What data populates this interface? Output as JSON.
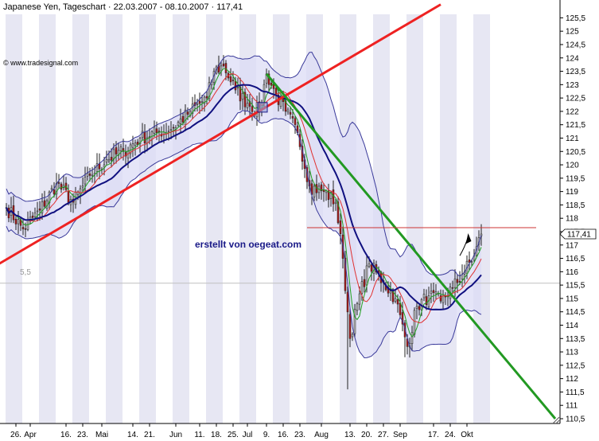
{
  "header": {
    "title": "Japanese Yen, Tageschart · 22.03.2007 - 08.10.2007 · 117,41",
    "copyright": "© www.tradesignal.com"
  },
  "annotations": {
    "watermark": "erstellt von oegeat.com",
    "level_marker": "5,5",
    "last_price": "117,41"
  },
  "chart_data": {
    "type": "candlestick",
    "title": "Japanese Yen, Tageschart · 22.03.2007 - 08.10.2007 · 117,41",
    "ylim": [
      110.5,
      125.75
    ],
    "y_ticks": [
      "125,5",
      "125",
      "124,5",
      "124",
      "123,5",
      "123",
      "122,5",
      "122",
      "121,5",
      "121",
      "120,5",
      "120",
      "119,5",
      "119",
      "118,5",
      "118",
      "117,5",
      "117",
      "116,5",
      "116",
      "115,5",
      "115",
      "114,5",
      "114",
      "113,5",
      "113",
      "112,5",
      "112",
      "111,5",
      "111",
      "110,5"
    ],
    "x_ticks": [
      {
        "label": "26.",
        "day": 4
      },
      {
        "label": "Apr",
        "day": 10
      },
      {
        "label": "16.",
        "day": 25
      },
      {
        "label": "23.",
        "day": 32
      },
      {
        "label": "Mai",
        "day": 40
      },
      {
        "label": "14.",
        "day": 53
      },
      {
        "label": "21.",
        "day": 60
      },
      {
        "label": "Jun",
        "day": 71
      },
      {
        "label": "11.",
        "day": 81
      },
      {
        "label": "18.",
        "day": 88
      },
      {
        "label": "25.",
        "day": 95
      },
      {
        "label": "Jul",
        "day": 101
      },
      {
        "label": "9.",
        "day": 109
      },
      {
        "label": "16.",
        "day": 116
      },
      {
        "label": "23.",
        "day": 123
      },
      {
        "label": "Aug",
        "day": 132
      },
      {
        "label": "13.",
        "day": 144
      },
      {
        "label": "20.",
        "day": 151
      },
      {
        "label": "27.",
        "day": 158
      },
      {
        "label": "Sep",
        "day": 165
      },
      {
        "label": "17.",
        "day": 179
      },
      {
        "label": "24.",
        "day": 186
      },
      {
        "label": "Okt",
        "day": 193
      }
    ],
    "close_anchors": [
      {
        "day": 0,
        "value": 118.4
      },
      {
        "day": 7,
        "value": 117.6
      },
      {
        "day": 14,
        "value": 118.3
      },
      {
        "day": 21,
        "value": 119.3
      },
      {
        "day": 28,
        "value": 118.6
      },
      {
        "day": 35,
        "value": 119.6
      },
      {
        "day": 42,
        "value": 120.2
      },
      {
        "day": 49,
        "value": 120.5
      },
      {
        "day": 56,
        "value": 121.0
      },
      {
        "day": 63,
        "value": 121.2
      },
      {
        "day": 70,
        "value": 121.4
      },
      {
        "day": 77,
        "value": 122.0
      },
      {
        "day": 84,
        "value": 122.5
      },
      {
        "day": 87,
        "value": 123.5
      },
      {
        "day": 91,
        "value": 123.7
      },
      {
        "day": 96,
        "value": 122.8
      },
      {
        "day": 101,
        "value": 122.3
      },
      {
        "day": 106,
        "value": 122.0
      },
      {
        "day": 109,
        "value": 123.4
      },
      {
        "day": 113,
        "value": 122.6
      },
      {
        "day": 117,
        "value": 122.0
      },
      {
        "day": 122,
        "value": 121.2
      },
      {
        "day": 127,
        "value": 119.2
      },
      {
        "day": 133,
        "value": 119.0
      },
      {
        "day": 138,
        "value": 118.6
      },
      {
        "day": 141,
        "value": 116.5
      },
      {
        "day": 144,
        "value": 113.5
      },
      {
        "day": 147,
        "value": 114.8
      },
      {
        "day": 152,
        "value": 116.3
      },
      {
        "day": 158,
        "value": 115.6
      },
      {
        "day": 163,
        "value": 115.0
      },
      {
        "day": 168,
        "value": 113.2
      },
      {
        "day": 172,
        "value": 114.7
      },
      {
        "day": 177,
        "value": 115.1
      },
      {
        "day": 182,
        "value": 114.9
      },
      {
        "day": 187,
        "value": 115.4
      },
      {
        "day": 191,
        "value": 115.9
      },
      {
        "day": 196,
        "value": 116.6
      },
      {
        "day": 199,
        "value": 117.41
      }
    ],
    "overlays": {
      "uptrend_line": {
        "color": "#ee2222",
        "from": {
          "day": -3,
          "value": 116.3
        },
        "to": {
          "day": 182,
          "value": 126.0
        }
      },
      "downtrend_line": {
        "color": "#229922",
        "from": {
          "day": 109,
          "value": 123.4
        },
        "to": {
          "day": 230,
          "value": 110.5
        }
      },
      "resistance_line": {
        "color": "#cc3333",
        "from": {
          "day": 126,
          "value": 117.65
        },
        "to": {
          "day": 222,
          "value": 117.65
        }
      },
      "reference_line": {
        "color": "#c0c0c0",
        "value": 115.57
      }
    },
    "colors": {
      "background": "#ffffff",
      "band_fill": "#dcdcf5",
      "stripe": "#e7e7f3",
      "bollinger": "#3a3a9a",
      "ma_slow": "#101080",
      "ma_mid": "#e03030",
      "ma_fast": "#20a020",
      "candle_up": "#bcbcbc",
      "candle_down": "#b01818"
    }
  }
}
